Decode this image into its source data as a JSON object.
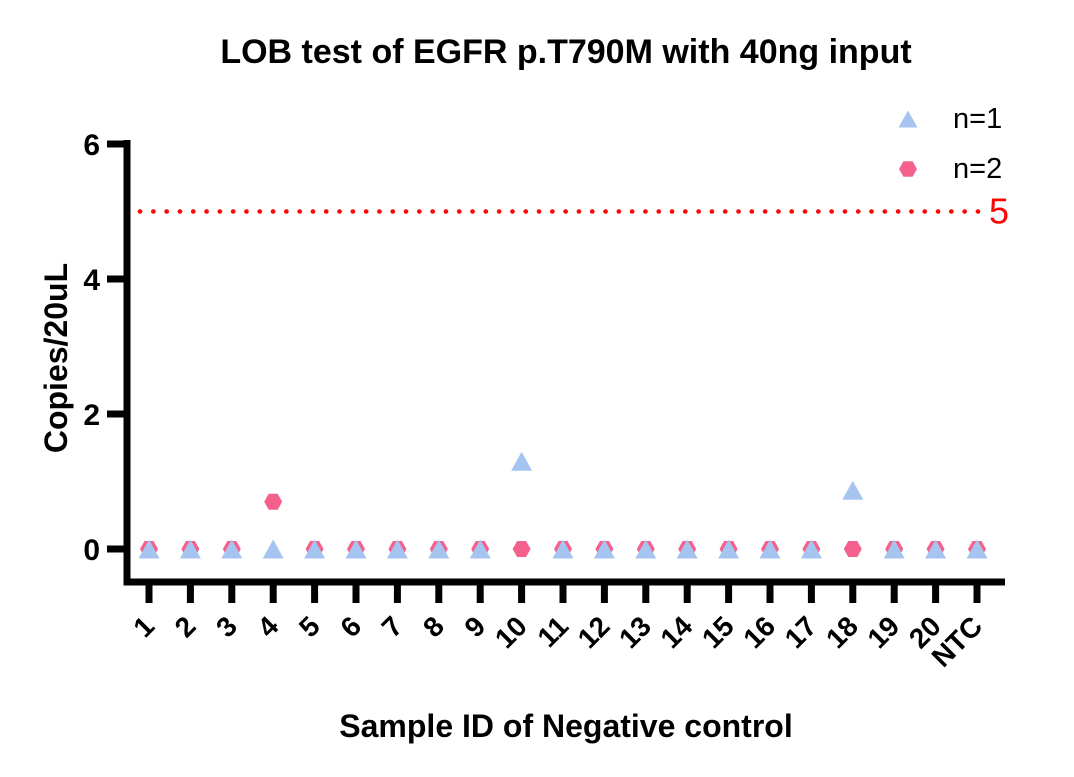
{
  "chart_data": {
    "type": "scatter",
    "title": "LOB test of EGFR p.T790M with 40ng input",
    "xlabel": "Sample ID of Negative control",
    "ylabel": "Copies/20uL",
    "categories": [
      "1",
      "2",
      "3",
      "4",
      "5",
      "6",
      "7",
      "8",
      "9",
      "10",
      "11",
      "12",
      "13",
      "14",
      "15",
      "16",
      "17",
      "18",
      "19",
      "20",
      "NTC"
    ],
    "yticks": [
      0,
      2,
      4,
      6
    ],
    "ylim": [
      -0.5,
      6
    ],
    "grid": false,
    "legend_position": "top-right",
    "axis_color": "#000000",
    "series": [
      {
        "name": "n=1",
        "marker": "triangle",
        "color": "#A6C4F0",
        "values": [
          0,
          0,
          0,
          0,
          0,
          0,
          0,
          0,
          0,
          1.3,
          0,
          0,
          0,
          0,
          0,
          0,
          0,
          0.87,
          0,
          0,
          0
        ]
      },
      {
        "name": "n=2",
        "marker": "hexagon",
        "color": "#F4618C",
        "values": [
          0,
          0,
          0,
          0.7,
          0,
          0,
          0,
          0,
          0,
          0,
          0,
          0,
          0,
          0,
          0,
          0,
          0,
          0,
          0,
          0,
          0
        ]
      }
    ],
    "threshold_line": {
      "y": 5,
      "label": "5",
      "color": "#FB0505",
      "style": "dotted"
    }
  }
}
